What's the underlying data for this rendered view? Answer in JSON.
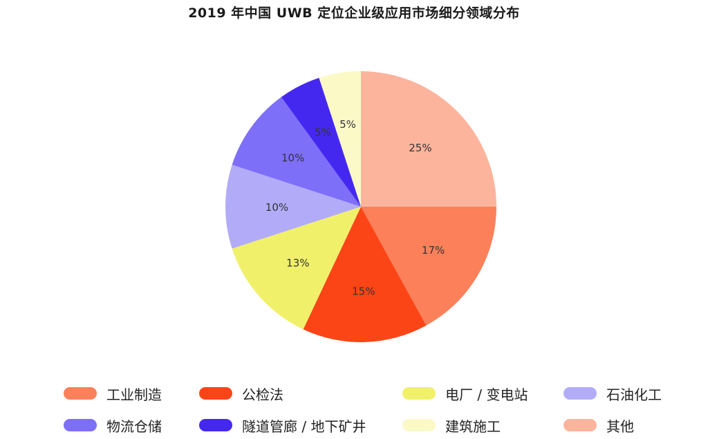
{
  "chart_data": {
    "type": "pie",
    "title": "2019 年中国 UWB 定位企业级应用市场细分领域分布",
    "slices": [
      {
        "label": "其他",
        "value": 25,
        "display": "25%",
        "color": "#fdb49c"
      },
      {
        "label": "工业制造",
        "value": 17,
        "display": "17%",
        "color": "#fc8059"
      },
      {
        "label": "公检法",
        "value": 15,
        "display": "15%",
        "color": "#fc4516"
      },
      {
        "label": "电厂 / 变电站",
        "value": 13,
        "display": "13%",
        "color": "#f0f06b"
      },
      {
        "label": "石油化工",
        "value": 10,
        "display": "10%",
        "color": "#b2acf8"
      },
      {
        "label": "物流仓储",
        "value": 10,
        "display": "10%",
        "color": "#7d6ff8"
      },
      {
        "label": "隧道管廊 / 地下矿井",
        "value": 5,
        "display": "5%",
        "color": "#4528f0"
      },
      {
        "label": "建筑施工",
        "value": 5,
        "display": "5%",
        "color": "#fbf9c6"
      }
    ],
    "legend": [
      {
        "label": "工业制造",
        "color": "#fc8059"
      },
      {
        "label": "公检法",
        "color": "#fc4516"
      },
      {
        "label": "电厂 / 变电站",
        "color": "#f0f06b"
      },
      {
        "label": "石油化工",
        "color": "#b2acf8"
      },
      {
        "label": "物流仓储",
        "color": "#7d6ff8"
      },
      {
        "label": "隧道管廊 / 地下矿井",
        "color": "#4528f0"
      },
      {
        "label": "建筑施工",
        "color": "#fbf9c6"
      },
      {
        "label": "其他",
        "color": "#fdb49c"
      }
    ],
    "legend_placement": "bottom"
  }
}
